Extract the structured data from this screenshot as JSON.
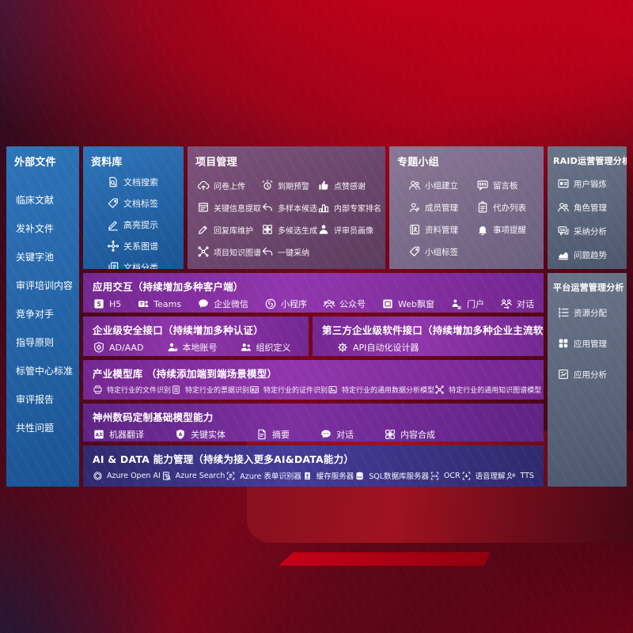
{
  "colors": {
    "bg-red": "#c60019",
    "blue-1": "#2f74b8",
    "blue-2": "#1a5495",
    "mauve-1": "#7d527b",
    "mauve-2": "#5c3c5f",
    "graypurple-1": "#8a7796",
    "graypurple-2": "#6c5f7e",
    "slate-1": "#6a7489",
    "slate-2": "#4d586e",
    "purple-1": "#9136ad",
    "purple-2": "#732790",
    "purpledark-1": "#7d30a0",
    "purpledark-2": "#5f2385",
    "indigo-1": "#443c98",
    "indigo-2": "#2f2a6e"
  },
  "left_sidebar": {
    "title": "外部文件",
    "items": [
      "临床文献",
      "发补文件",
      "关键字池",
      "审评培训内容",
      "竞争对手",
      "指导原则",
      "标管中心标准",
      "审评报告",
      "共性问题"
    ]
  },
  "repository": {
    "title": "资料库",
    "items": [
      {
        "icon": "doc-search",
        "label": "文档搜索"
      },
      {
        "icon": "doc-tag",
        "label": "文档标签"
      },
      {
        "icon": "highlight-pen",
        "label": "高亮提示"
      },
      {
        "icon": "relation-graph",
        "label": "关系图谱"
      },
      {
        "icon": "doc-category",
        "label": "文档分类"
      }
    ]
  },
  "project_mgmt": {
    "title": "项目管理",
    "items": [
      {
        "icon": "cloud-upload",
        "label": "问卷上传"
      },
      {
        "icon": "alarm",
        "label": "到期预警"
      },
      {
        "icon": "thumbs-up",
        "label": "点赞感谢"
      },
      {
        "icon": "doc-extract",
        "label": "关键信息提取"
      },
      {
        "icon": "reply-arrow",
        "label": "多样本候选"
      },
      {
        "icon": "podium-rank",
        "label": "内部专家排名"
      },
      {
        "icon": "edit-pen",
        "label": "回复库维护"
      },
      {
        "icon": "grid-generate",
        "label": "多候选生成"
      },
      {
        "icon": "person",
        "label": "评审员画像"
      },
      {
        "icon": "knowledge-graph",
        "label": "项目知识图谱"
      },
      {
        "icon": "adopt-arrow",
        "label": "一键采纳"
      }
    ]
  },
  "topic_groups": {
    "title": "专题小组",
    "items": [
      {
        "icon": "user-group",
        "label": "小组建立"
      },
      {
        "icon": "bbs-board",
        "label": "留言板"
      },
      {
        "icon": "member-add",
        "label": "成员管理"
      },
      {
        "icon": "todo-list",
        "label": "代办列表"
      },
      {
        "icon": "data-manage",
        "label": "资料管理"
      },
      {
        "icon": "bell",
        "label": "事项提醒"
      },
      {
        "icon": "doc-tag",
        "label": "小组标签"
      }
    ]
  },
  "raid_analysis": {
    "title": "RAID运营管理分析",
    "items": [
      {
        "icon": "id-card",
        "label": "用户锻炼"
      },
      {
        "icon": "user-group",
        "label": "角色管理"
      },
      {
        "icon": "qa-chat",
        "label": "采纳分析"
      },
      {
        "icon": "trend-chart",
        "label": "问题趋势"
      }
    ]
  },
  "platform_analysis": {
    "title": "平台运营管理分析",
    "items": [
      {
        "icon": "resource-list",
        "label": "资源分配"
      },
      {
        "icon": "apps-grid",
        "label": "应用管理"
      },
      {
        "icon": "app-analysis",
        "label": "应用分析"
      }
    ]
  },
  "app_interaction": {
    "title": "应用交互（持续增加多种客户端）",
    "items": [
      {
        "icon": "h5",
        "label": "H5"
      },
      {
        "icon": "teams",
        "label": "Teams"
      },
      {
        "icon": "wechat-work",
        "label": "企业微信"
      },
      {
        "icon": "miniprogram",
        "label": "小程序"
      },
      {
        "icon": "official-account",
        "label": "公众号"
      },
      {
        "icon": "web-window",
        "label": "Web飘窗"
      },
      {
        "icon": "portal",
        "label": "门户"
      },
      {
        "icon": "conversation",
        "label": "对话"
      }
    ]
  },
  "security_api": {
    "title": "企业级安全接口（持续增加多种认证）",
    "items": [
      {
        "icon": "ad-shield",
        "label": "AD/AAD"
      },
      {
        "icon": "local-account",
        "label": "本地账号"
      },
      {
        "icon": "org-define",
        "label": "组织定义"
      }
    ]
  },
  "third_party_api": {
    "title": "第三方企业级软件接口（持续增加多种企业主流软件接口）",
    "items": [
      {
        "icon": "api-designer",
        "label": "API自动化设计器"
      }
    ]
  },
  "industry_models": {
    "title": "产业模型库 （持续添加端到端场景模型）",
    "items": [
      {
        "icon": "file-recognize",
        "label": "特定行业的文件识别"
      },
      {
        "icon": "invoice-recognize",
        "label": "特定行业的票据识别"
      },
      {
        "icon": "idcard-recognize",
        "label": "特定行业的证件识别"
      },
      {
        "icon": "data-model",
        "label": "特定行业的通用数据分析模型"
      },
      {
        "icon": "kg-model",
        "label": "特定行业的通用知识图谱模型"
      }
    ]
  },
  "base_models": {
    "title": "神州数码定制基础模型能力",
    "items": [
      {
        "icon": "machine-translate",
        "label": "机器翻译"
      },
      {
        "icon": "key-entity",
        "label": "关键实体"
      },
      {
        "icon": "summary-doc",
        "label": "摘要"
      },
      {
        "icon": "chat-dialog",
        "label": "对话"
      },
      {
        "icon": "content-compose",
        "label": "内容合成"
      }
    ]
  },
  "ai_data": {
    "title": "AI & DATA 能力管理（持续为接入更多AI&DATA能力）",
    "items": [
      {
        "icon": "openai",
        "label": "Azure Open AI"
      },
      {
        "icon": "azure-search",
        "label": "Azure Search"
      },
      {
        "icon": "form-recognizer",
        "label": "Azure 表单识别器"
      },
      {
        "icon": "cache-server",
        "label": "缓存服务器"
      },
      {
        "icon": "sql-db",
        "label": "SQL数据库服务器"
      },
      {
        "icon": "ocr",
        "label": "OCR"
      },
      {
        "icon": "speech",
        "label": "语音理解"
      },
      {
        "icon": "tts",
        "label": "TTS"
      }
    ]
  }
}
